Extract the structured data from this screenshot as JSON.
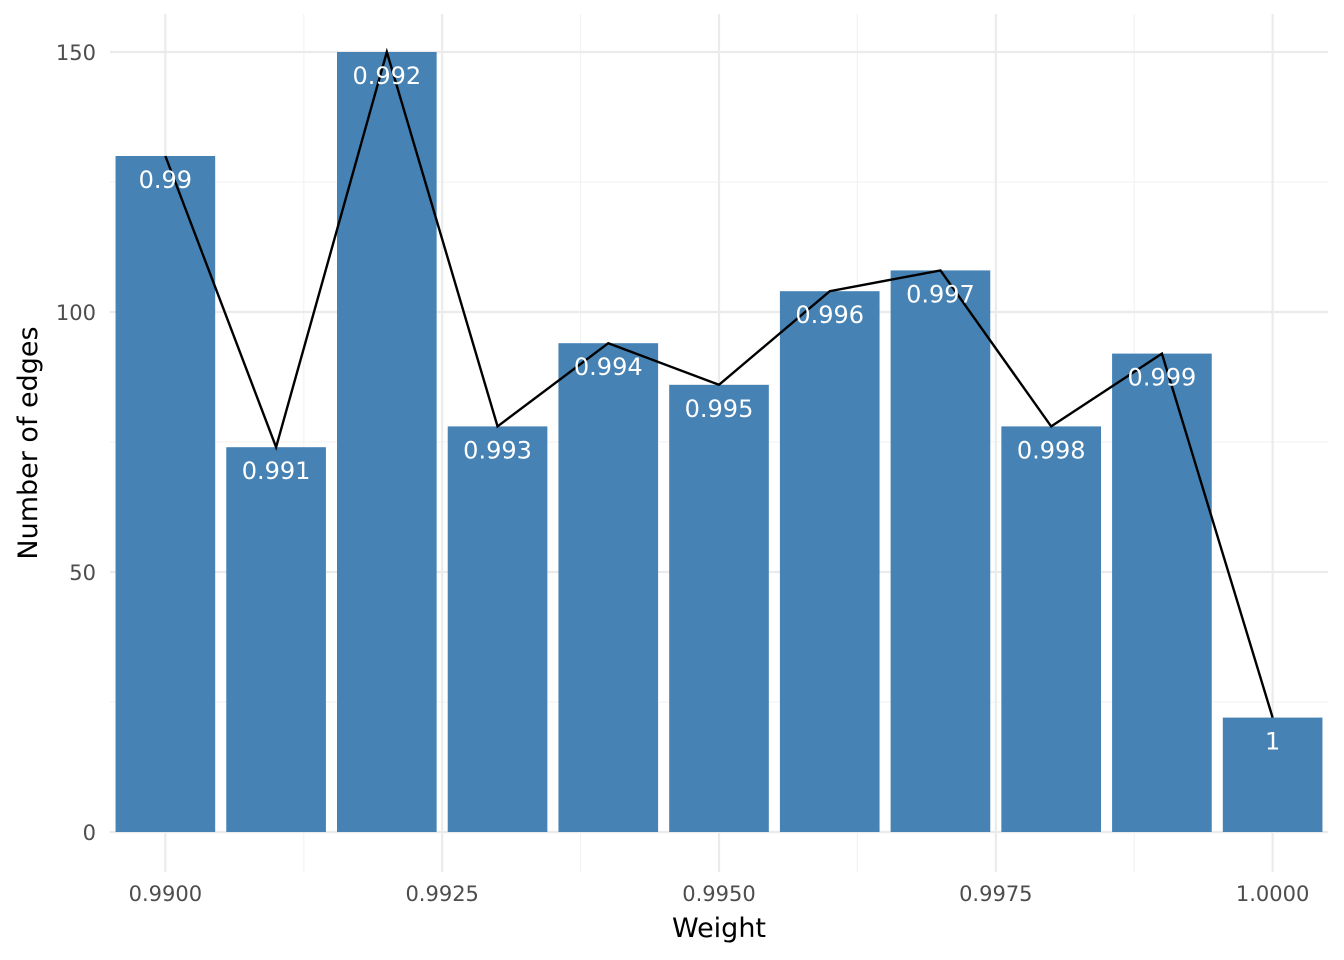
{
  "chart_data": {
    "type": "bar",
    "title": "",
    "xlabel": "Weight",
    "ylabel": "Number of edges",
    "xlim": [
      0.9895,
      1.0005
    ],
    "ylim": [
      0,
      150
    ],
    "x_ticks": [
      "0.9900",
      "0.9925",
      "0.9950",
      "0.9975",
      "1.0000"
    ],
    "x_tick_values": [
      0.99,
      0.9925,
      0.995,
      0.9975,
      1.0
    ],
    "y_ticks": [
      "0",
      "50",
      "100",
      "150"
    ],
    "y_tick_values": [
      0,
      50,
      100,
      150
    ],
    "grid": true,
    "legend": "none",
    "bar_color": "#4682b4",
    "line_color": "#000000",
    "bar_width": 0.0009,
    "x": [
      0.99,
      0.991,
      0.992,
      0.993,
      0.994,
      0.995,
      0.996,
      0.997,
      0.998,
      0.999,
      1.0
    ],
    "values": [
      130,
      74,
      150,
      78,
      94,
      86,
      104,
      108,
      78,
      92,
      22
    ],
    "bar_labels": [
      "0.99",
      "0.991",
      "0.992",
      "0.993",
      "0.994",
      "0.995",
      "0.996",
      "0.997",
      "0.998",
      "0.999",
      "1"
    ]
  }
}
